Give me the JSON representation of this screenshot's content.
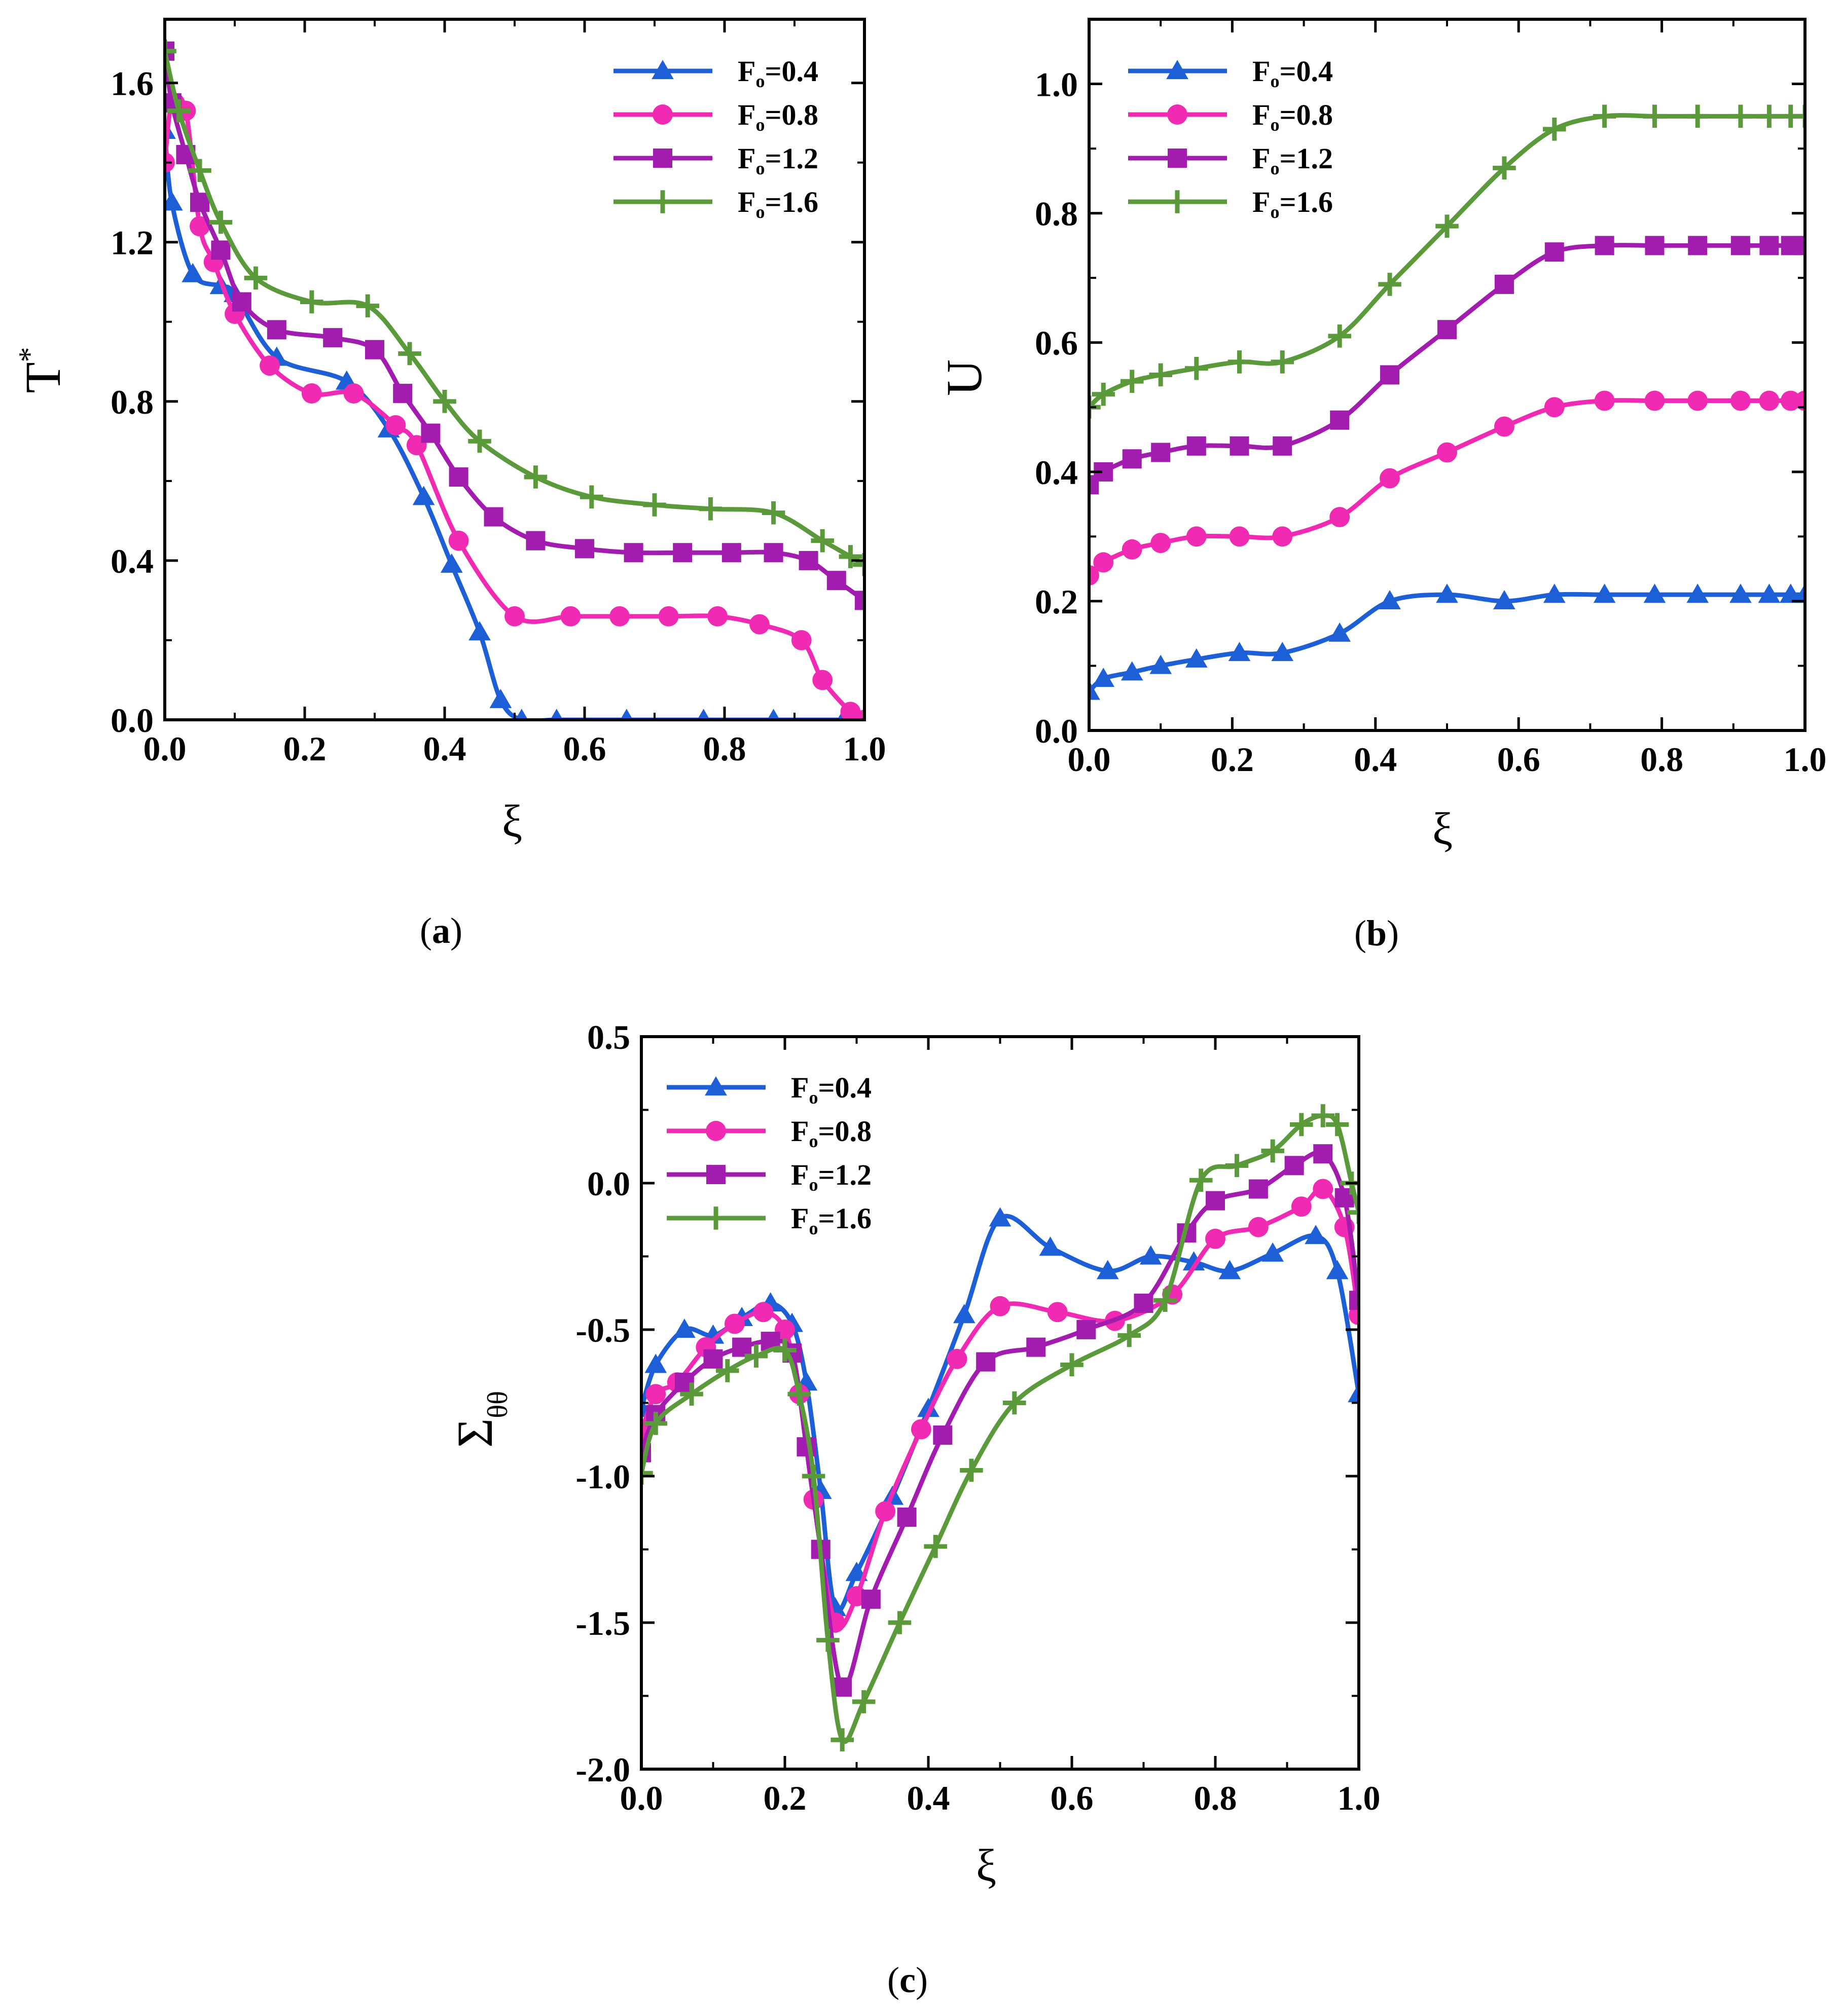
{
  "chart_data": [
    {
      "id": "a",
      "type": "line",
      "caption": "(a)",
      "caption_letter": "a",
      "xlabel": "ξ",
      "ylabel": "T",
      "ylabel_sup": "*",
      "xlim": [
        0.0,
        1.0
      ],
      "ylim": [
        0.0,
        1.76
      ],
      "xticks": [
        "0.0",
        "0.2",
        "0.4",
        "0.6",
        "0.8",
        "1.0"
      ],
      "yticks": [
        "0.0",
        "0.4",
        "0.8",
        "1.2",
        "1.6"
      ],
      "legend_position": "top-right",
      "series": [
        {
          "name": "Fo=0.4",
          "legend_label": "F",
          "legend_sub": "o",
          "legend_value": "=0.4",
          "color": "#1C5FD6",
          "marker": "triangle",
          "x": [
            0.0,
            0.01,
            0.04,
            0.08,
            0.1,
            0.16,
            0.26,
            0.32,
            0.37,
            0.41,
            0.45,
            0.48,
            0.51,
            0.56,
            0.66,
            0.77,
            0.87,
            0.97,
            1.0
          ],
          "y": [
            1.48,
            1.3,
            1.12,
            1.09,
            1.07,
            0.91,
            0.85,
            0.73,
            0.56,
            0.39,
            0.22,
            0.05,
            0.0,
            0.0,
            0.0,
            0.0,
            0.0,
            0.0,
            0.0
          ]
        },
        {
          "name": "Fo=0.8",
          "legend_label": "F",
          "legend_sub": "o",
          "legend_value": "=0.8",
          "color": "#F02AB3",
          "marker": "circle",
          "x": [
            0.0,
            0.01,
            0.03,
            0.05,
            0.07,
            0.1,
            0.15,
            0.21,
            0.27,
            0.33,
            0.36,
            0.42,
            0.5,
            0.58,
            0.65,
            0.72,
            0.79,
            0.85,
            0.91,
            0.94,
            0.98,
            1.0
          ],
          "y": [
            1.4,
            1.55,
            1.53,
            1.24,
            1.15,
            1.02,
            0.89,
            0.82,
            0.82,
            0.74,
            0.69,
            0.45,
            0.26,
            0.26,
            0.26,
            0.26,
            0.26,
            0.24,
            0.2,
            0.1,
            0.02,
            0.0
          ]
        },
        {
          "name": "Fo=1.2",
          "legend_label": "F",
          "legend_sub": "o",
          "legend_value": "=1.2",
          "color": "#A21CAF",
          "marker": "square",
          "x": [
            0.0,
            0.01,
            0.03,
            0.05,
            0.08,
            0.11,
            0.16,
            0.24,
            0.3,
            0.34,
            0.38,
            0.42,
            0.47,
            0.53,
            0.6,
            0.67,
            0.74,
            0.81,
            0.87,
            0.92,
            0.96,
            1.0
          ],
          "y": [
            1.68,
            1.55,
            1.42,
            1.3,
            1.18,
            1.05,
            0.98,
            0.96,
            0.93,
            0.82,
            0.72,
            0.61,
            0.51,
            0.45,
            0.43,
            0.42,
            0.42,
            0.42,
            0.42,
            0.4,
            0.35,
            0.3
          ]
        },
        {
          "name": "Fo=1.6",
          "legend_label": "F",
          "legend_sub": "o",
          "legend_value": "=1.6",
          "color": "#5A9A3A",
          "marker": "plus",
          "x": [
            0.0,
            0.02,
            0.05,
            0.08,
            0.13,
            0.21,
            0.29,
            0.35,
            0.4,
            0.45,
            0.53,
            0.61,
            0.7,
            0.78,
            0.87,
            0.94,
            0.98,
            1.0
          ],
          "y": [
            1.68,
            1.53,
            1.38,
            1.25,
            1.11,
            1.05,
            1.04,
            0.92,
            0.8,
            0.7,
            0.61,
            0.56,
            0.54,
            0.53,
            0.52,
            0.45,
            0.41,
            0.39
          ]
        }
      ]
    },
    {
      "id": "b",
      "type": "line",
      "caption": "(b)",
      "caption_letter": "b",
      "xlabel": "ξ",
      "ylabel": "U",
      "ylabel_sup": "",
      "xlim": [
        0.0,
        1.0
      ],
      "ylim": [
        0.0,
        1.1
      ],
      "xticks": [
        "0.0",
        "0.2",
        "0.4",
        "0.6",
        "0.8",
        "1.0"
      ],
      "yticks": [
        "0.0",
        "0.2",
        "0.4",
        "0.6",
        "0.8",
        "1.0"
      ],
      "legend_position": "top-left",
      "series": [
        {
          "name": "Fo=0.4",
          "legend_label": "F",
          "legend_sub": "o",
          "legend_value": "=0.4",
          "color": "#1C5FD6",
          "marker": "triangle",
          "x": [
            0.0,
            0.02,
            0.06,
            0.1,
            0.15,
            0.21,
            0.27,
            0.35,
            0.42,
            0.5,
            0.58,
            0.65,
            0.72,
            0.79,
            0.85,
            0.91,
            0.95,
            0.98,
            1.0
          ],
          "y": [
            0.06,
            0.08,
            0.09,
            0.1,
            0.11,
            0.12,
            0.12,
            0.15,
            0.2,
            0.21,
            0.2,
            0.21,
            0.21,
            0.21,
            0.21,
            0.21,
            0.21,
            0.21,
            0.21
          ]
        },
        {
          "name": "Fo=0.8",
          "legend_label": "F",
          "legend_sub": "o",
          "legend_value": "=0.8",
          "color": "#F02AB3",
          "marker": "circle",
          "x": [
            0.0,
            0.02,
            0.06,
            0.1,
            0.15,
            0.21,
            0.27,
            0.35,
            0.42,
            0.5,
            0.58,
            0.65,
            0.72,
            0.79,
            0.85,
            0.91,
            0.95,
            0.98,
            1.0
          ],
          "y": [
            0.24,
            0.26,
            0.28,
            0.29,
            0.3,
            0.3,
            0.3,
            0.33,
            0.39,
            0.43,
            0.47,
            0.5,
            0.51,
            0.51,
            0.51,
            0.51,
            0.51,
            0.51,
            0.51
          ]
        },
        {
          "name": "Fo=1.2",
          "legend_label": "F",
          "legend_sub": "o",
          "legend_value": "=1.2",
          "color": "#A21CAF",
          "marker": "square",
          "x": [
            0.0,
            0.02,
            0.06,
            0.1,
            0.15,
            0.21,
            0.27,
            0.35,
            0.42,
            0.5,
            0.58,
            0.65,
            0.72,
            0.79,
            0.85,
            0.91,
            0.95,
            0.98,
            1.0
          ],
          "y": [
            0.38,
            0.4,
            0.42,
            0.43,
            0.44,
            0.44,
            0.44,
            0.48,
            0.55,
            0.62,
            0.69,
            0.74,
            0.75,
            0.75,
            0.75,
            0.75,
            0.75,
            0.75,
            0.75
          ]
        },
        {
          "name": "Fo=1.6",
          "legend_label": "F",
          "legend_sub": "o",
          "legend_value": "=1.6",
          "color": "#5A9A3A",
          "marker": "plus",
          "x": [
            0.0,
            0.02,
            0.06,
            0.1,
            0.15,
            0.21,
            0.27,
            0.35,
            0.42,
            0.5,
            0.58,
            0.65,
            0.72,
            0.79,
            0.85,
            0.91,
            0.95,
            0.98,
            1.0
          ],
          "y": [
            0.5,
            0.52,
            0.54,
            0.55,
            0.56,
            0.57,
            0.57,
            0.61,
            0.69,
            0.78,
            0.87,
            0.93,
            0.95,
            0.95,
            0.95,
            0.95,
            0.95,
            0.95,
            0.95
          ]
        }
      ]
    },
    {
      "id": "c",
      "type": "line",
      "caption": "(c)",
      "caption_letter": "c",
      "xlabel": "ξ",
      "ylabel": "Σ",
      "ylabel_sub": "θθ",
      "xlim": [
        0.0,
        1.0
      ],
      "ylim": [
        -2.0,
        0.5
      ],
      "xticks": [
        "0.0",
        "0.2",
        "0.4",
        "0.6",
        "0.8",
        "1.0"
      ],
      "yticks": [
        "-2.0",
        "-1.5",
        "-1.0",
        "-0.5",
        "0.0",
        "0.5"
      ],
      "legend_position": "top-left",
      "series": [
        {
          "name": "Fo=0.4",
          "legend_label": "F",
          "legend_sub": "o",
          "legend_value": "=0.4",
          "color": "#1C5FD6",
          "marker": "triangle",
          "x": [
            0.0,
            0.02,
            0.06,
            0.1,
            0.14,
            0.18,
            0.21,
            0.23,
            0.25,
            0.27,
            0.3,
            0.35,
            0.4,
            0.45,
            0.5,
            0.57,
            0.65,
            0.71,
            0.77,
            0.82,
            0.88,
            0.94,
            0.97,
            1.0
          ],
          "y": [
            -0.77,
            -0.62,
            -0.5,
            -0.52,
            -0.46,
            -0.41,
            -0.48,
            -0.68,
            -1.05,
            -1.45,
            -1.33,
            -1.07,
            -0.77,
            -0.45,
            -0.12,
            -0.22,
            -0.3,
            -0.25,
            -0.27,
            -0.3,
            -0.24,
            -0.18,
            -0.3,
            -0.72
          ]
        },
        {
          "name": "Fo=0.8",
          "legend_label": "F",
          "legend_sub": "o",
          "legend_value": "=0.8",
          "color": "#F02AB3",
          "marker": "circle",
          "x": [
            0.0,
            0.02,
            0.05,
            0.09,
            0.13,
            0.17,
            0.2,
            0.22,
            0.24,
            0.27,
            0.3,
            0.34,
            0.39,
            0.44,
            0.5,
            0.58,
            0.66,
            0.74,
            0.8,
            0.86,
            0.92,
            0.95,
            0.98,
            1.0
          ],
          "y": [
            -0.85,
            -0.72,
            -0.68,
            -0.56,
            -0.48,
            -0.44,
            -0.5,
            -0.72,
            -1.08,
            -1.5,
            -1.41,
            -1.12,
            -0.84,
            -0.6,
            -0.42,
            -0.44,
            -0.47,
            -0.38,
            -0.19,
            -0.15,
            -0.08,
            -0.02,
            -0.15,
            -0.45
          ]
        },
        {
          "name": "Fo=1.2",
          "legend_label": "F",
          "legend_sub": "o",
          "legend_value": "=1.2",
          "color": "#A21CAF",
          "marker": "square",
          "x": [
            0.0,
            0.02,
            0.06,
            0.1,
            0.14,
            0.18,
            0.21,
            0.23,
            0.25,
            0.28,
            0.32,
            0.37,
            0.42,
            0.48,
            0.55,
            0.62,
            0.7,
            0.76,
            0.8,
            0.86,
            0.91,
            0.95,
            0.98,
            1.0
          ],
          "y": [
            -0.92,
            -0.79,
            -0.68,
            -0.6,
            -0.56,
            -0.54,
            -0.58,
            -0.9,
            -1.25,
            -1.72,
            -1.42,
            -1.14,
            -0.86,
            -0.61,
            -0.56,
            -0.5,
            -0.41,
            -0.17,
            -0.06,
            -0.02,
            0.06,
            0.1,
            -0.05,
            -0.4
          ]
        },
        {
          "name": "Fo=1.6",
          "legend_label": "F",
          "legend_sub": "o",
          "legend_value": "=1.6",
          "color": "#5A9A3A",
          "marker": "plus",
          "x": [
            0.0,
            0.02,
            0.07,
            0.12,
            0.16,
            0.2,
            0.22,
            0.24,
            0.26,
            0.28,
            0.31,
            0.36,
            0.41,
            0.46,
            0.52,
            0.6,
            0.68,
            0.73,
            0.78,
            0.83,
            0.88,
            0.92,
            0.95,
            0.97,
            0.99,
            1.0
          ],
          "y": [
            -0.99,
            -0.82,
            -0.72,
            -0.64,
            -0.59,
            -0.57,
            -0.72,
            -1.0,
            -1.56,
            -1.9,
            -1.77,
            -1.5,
            -1.24,
            -0.98,
            -0.75,
            -0.62,
            -0.52,
            -0.4,
            0.01,
            0.06,
            0.11,
            0.2,
            0.23,
            0.2,
            0.0,
            -0.1
          ]
        }
      ]
    }
  ]
}
